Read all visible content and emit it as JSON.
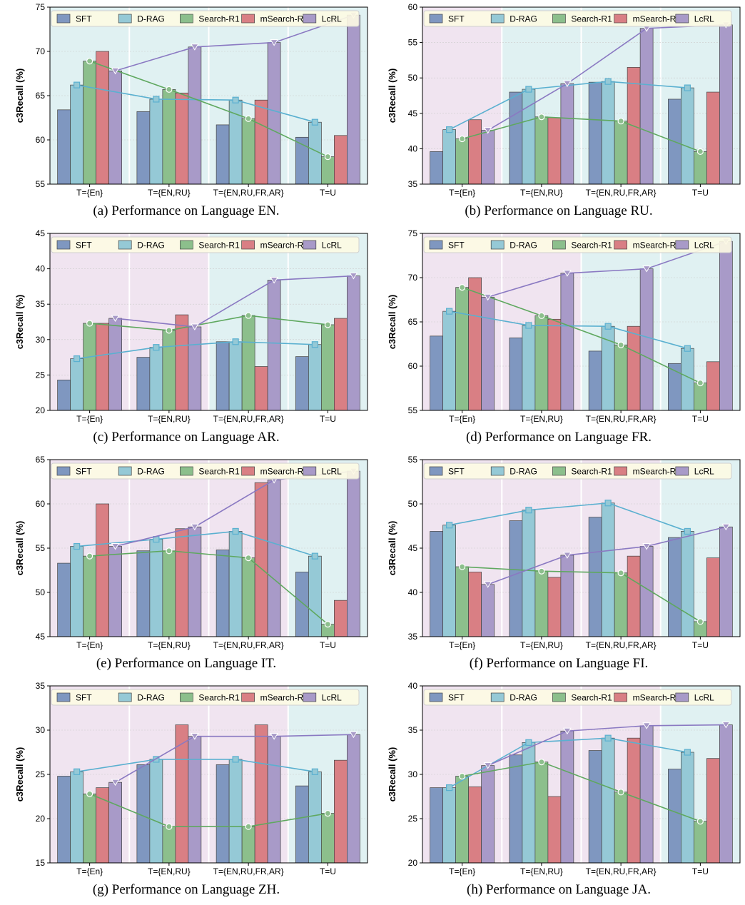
{
  "common": {
    "ylabel": "c3Recall (%)",
    "categories": [
      "T={En}",
      "T={EN,RU}",
      "T={EN,RU,FR,AR}",
      "T=U"
    ],
    "series_names": [
      "SFT",
      "D-RAG",
      "Search-R1",
      "mSearch-R1",
      "LcRL"
    ],
    "colors": {
      "SFT": "#7f97c0",
      "D-RAG": "#95c9d6",
      "Search-R1": "#8cbf8c",
      "mSearch-R1": "#d97f84",
      "LcRL": "#a89ac8",
      "line_D-RAG": "#5ab0d0",
      "line_Search-R1": "#5fa85f",
      "line_LcRL": "#8a79c2",
      "bg_purple": "#f0e4f0",
      "bg_teal": "#e0f1f2",
      "legend_bg": "#fdfbe3"
    }
  },
  "chart_data": [
    {
      "type": "bar",
      "caption": "(a) Performance on Language EN.",
      "ylim": [
        55,
        75
      ],
      "yticks": [
        55,
        60,
        65,
        70,
        75
      ],
      "backgrounds": [
        "teal",
        "teal",
        "teal",
        "teal"
      ],
      "series": [
        {
          "name": "SFT",
          "values": [
            63.4,
            63.2,
            61.7,
            60.3
          ]
        },
        {
          "name": "D-RAG",
          "values": [
            66.2,
            64.6,
            64.5,
            62.0
          ]
        },
        {
          "name": "Search-R1",
          "values": [
            68.9,
            65.7,
            62.4,
            58.1
          ]
        },
        {
          "name": "mSearch-R1",
          "values": [
            70.0,
            65.3,
            64.5,
            60.5
          ]
        },
        {
          "name": "LcRL",
          "values": [
            67.8,
            70.5,
            71.0,
            74.1
          ]
        }
      ]
    },
    {
      "type": "bar",
      "caption": "(b) Performance on Language RU.",
      "ylim": [
        35,
        60
      ],
      "yticks": [
        35,
        40,
        45,
        50,
        55,
        60
      ],
      "backgrounds": [
        "purple",
        "teal",
        "teal",
        "teal"
      ],
      "series": [
        {
          "name": "SFT",
          "values": [
            39.6,
            48.0,
            49.4,
            47.0
          ]
        },
        {
          "name": "D-RAG",
          "values": [
            42.7,
            48.4,
            49.5,
            48.6
          ]
        },
        {
          "name": "Search-R1",
          "values": [
            41.4,
            44.5,
            43.9,
            39.6
          ]
        },
        {
          "name": "mSearch-R1",
          "values": [
            44.1,
            44.4,
            51.5,
            48.0
          ]
        },
        {
          "name": "LcRL",
          "values": [
            42.6,
            49.2,
            57.0,
            57.5
          ]
        }
      ]
    },
    {
      "type": "bar",
      "caption": "(c) Performance on Language AR.",
      "ylim": [
        20,
        45
      ],
      "yticks": [
        20,
        25,
        30,
        35,
        40,
        45
      ],
      "backgrounds": [
        "purple",
        "purple",
        "teal",
        "teal"
      ],
      "series": [
        {
          "name": "SFT",
          "values": [
            24.3,
            27.5,
            29.7,
            27.6
          ]
        },
        {
          "name": "D-RAG",
          "values": [
            27.3,
            28.9,
            29.7,
            29.3
          ]
        },
        {
          "name": "Search-R1",
          "values": [
            32.3,
            31.3,
            33.4,
            32.1
          ]
        },
        {
          "name": "mSearch-R1",
          "values": [
            32.3,
            33.5,
            26.2,
            33.0
          ]
        },
        {
          "name": "LcRL",
          "values": [
            33.0,
            31.8,
            38.4,
            39.0
          ]
        }
      ]
    },
    {
      "type": "bar",
      "caption": "(d) Performance on Language FR.",
      "ylim": [
        55,
        75
      ],
      "yticks": [
        55,
        60,
        65,
        70,
        75
      ],
      "backgrounds": [
        "purple",
        "purple",
        "teal",
        "teal"
      ],
      "series": [
        {
          "name": "SFT",
          "values": [
            63.4,
            63.2,
            61.7,
            60.3
          ]
        },
        {
          "name": "D-RAG",
          "values": [
            66.2,
            64.6,
            64.5,
            62.0
          ]
        },
        {
          "name": "Search-R1",
          "values": [
            68.9,
            65.7,
            62.4,
            58.1
          ]
        },
        {
          "name": "mSearch-R1",
          "values": [
            70.0,
            65.3,
            64.5,
            60.5
          ]
        },
        {
          "name": "LcRL",
          "values": [
            67.8,
            70.5,
            71.0,
            74.1
          ]
        }
      ]
    },
    {
      "type": "bar",
      "caption": "(e) Performance on Language IT.",
      "ylim": [
        45,
        65
      ],
      "yticks": [
        45,
        50,
        55,
        60,
        65
      ],
      "backgrounds": [
        "purple",
        "purple",
        "purple",
        "teal"
      ],
      "series": [
        {
          "name": "SFT",
          "values": [
            53.3,
            54.7,
            54.8,
            52.3
          ]
        },
        {
          "name": "D-RAG",
          "values": [
            55.2,
            56.0,
            56.9,
            54.1
          ]
        },
        {
          "name": "Search-R1",
          "values": [
            54.1,
            54.7,
            53.9,
            46.4
          ]
        },
        {
          "name": "mSearch-R1",
          "values": [
            60.0,
            57.2,
            62.4,
            49.1
          ]
        },
        {
          "name": "LcRL",
          "values": [
            55.2,
            57.4,
            62.7,
            63.7
          ]
        }
      ]
    },
    {
      "type": "bar",
      "caption": "(f) Performance on Language FI.",
      "ylim": [
        35,
        55
      ],
      "yticks": [
        35,
        40,
        45,
        50,
        55
      ],
      "backgrounds": [
        "purple",
        "purple",
        "purple",
        "teal"
      ],
      "series": [
        {
          "name": "SFT",
          "values": [
            46.9,
            48.1,
            48.5,
            46.2
          ]
        },
        {
          "name": "D-RAG",
          "values": [
            47.6,
            49.3,
            50.1,
            46.9
          ]
        },
        {
          "name": "Search-R1",
          "values": [
            42.9,
            42.4,
            42.2,
            36.7
          ]
        },
        {
          "name": "mSearch-R1",
          "values": [
            42.3,
            41.7,
            44.1,
            43.9
          ]
        },
        {
          "name": "LcRL",
          "values": [
            40.9,
            44.2,
            45.2,
            47.4
          ]
        }
      ]
    },
    {
      "type": "bar",
      "caption": "(g) Performance on Language ZH.",
      "ylim": [
        15,
        35
      ],
      "yticks": [
        15,
        20,
        25,
        30,
        35
      ],
      "backgrounds": [
        "purple",
        "purple",
        "purple",
        "teal"
      ],
      "series": [
        {
          "name": "SFT",
          "values": [
            24.8,
            26.1,
            26.1,
            23.7
          ]
        },
        {
          "name": "D-RAG",
          "values": [
            25.3,
            26.7,
            26.7,
            25.3
          ]
        },
        {
          "name": "Search-R1",
          "values": [
            22.8,
            19.1,
            19.1,
            20.6
          ]
        },
        {
          "name": "mSearch-R1",
          "values": [
            23.5,
            30.6,
            30.6,
            26.6
          ]
        },
        {
          "name": "LcRL",
          "values": [
            24.1,
            29.3,
            29.3,
            29.5
          ]
        }
      ]
    },
    {
      "type": "bar",
      "caption": "(h) Performance on Language JA.",
      "ylim": [
        20,
        40
      ],
      "yticks": [
        20,
        25,
        30,
        35,
        40
      ],
      "backgrounds": [
        "purple",
        "purple",
        "purple",
        "teal"
      ],
      "series": [
        {
          "name": "SFT",
          "values": [
            28.5,
            32.2,
            32.7,
            30.6
          ]
        },
        {
          "name": "D-RAG",
          "values": [
            28.5,
            33.6,
            34.1,
            32.5
          ]
        },
        {
          "name": "Search-R1",
          "values": [
            29.8,
            31.4,
            28.0,
            24.7
          ]
        },
        {
          "name": "mSearch-R1",
          "values": [
            28.6,
            27.5,
            34.1,
            31.8
          ]
        },
        {
          "name": "LcRL",
          "values": [
            31.0,
            34.9,
            35.5,
            35.6
          ]
        }
      ]
    }
  ]
}
